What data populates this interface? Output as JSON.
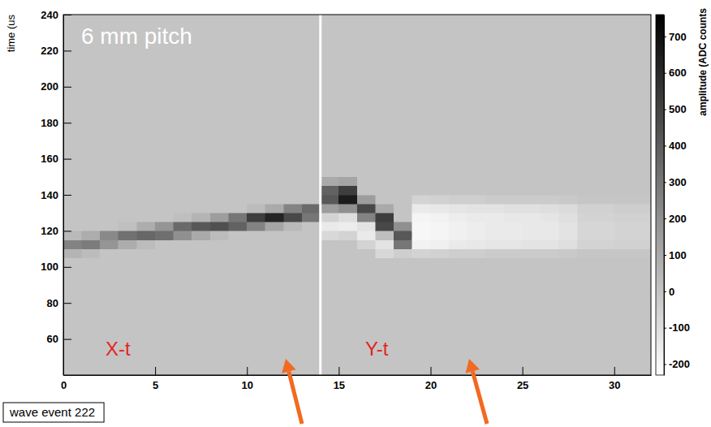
{
  "chart_data": {
    "type": "heatmap",
    "title": "wave event 222",
    "ylabel": "time (us",
    "annotations": [
      "6 mm pitch",
      "X-t",
      "Y-t"
    ],
    "xlim": [
      0,
      32
    ],
    "xticks": [
      0,
      5,
      10,
      15,
      20,
      25,
      30
    ],
    "ylim": [
      40,
      240
    ],
    "yticks": [
      60,
      80,
      100,
      120,
      140,
      160,
      180,
      200,
      220,
      240
    ],
    "divider": 14,
    "x_bins": [
      0,
      1,
      2,
      3,
      4,
      5,
      6,
      7,
      8,
      9,
      10,
      11,
      12,
      13,
      14,
      15,
      16,
      17,
      18,
      19,
      20,
      21,
      22,
      23,
      24,
      25,
      26,
      27,
      28,
      29,
      30,
      31,
      32
    ],
    "y_bins": [
      40,
      105,
      110,
      115,
      120,
      125,
      130,
      135,
      140,
      145,
      150,
      240
    ],
    "cells": [
      [
        0,
        60,
        250,
        40,
        0,
        0,
        0,
        0,
        0,
        0,
        0
      ],
      [
        0,
        30,
        280,
        90,
        0,
        0,
        0,
        0,
        0,
        0,
        0
      ],
      [
        0,
        0,
        180,
        230,
        0,
        0,
        0,
        0,
        0,
        0,
        0
      ],
      [
        0,
        0,
        90,
        320,
        20,
        0,
        0,
        0,
        0,
        0,
        0
      ],
      [
        0,
        0,
        30,
        360,
        90,
        0,
        0,
        0,
        0,
        0,
        0
      ],
      [
        0,
        0,
        0,
        330,
        180,
        0,
        0,
        0,
        0,
        0,
        0
      ],
      [
        0,
        0,
        0,
        200,
        350,
        20,
        0,
        0,
        0,
        0,
        0
      ],
      [
        0,
        0,
        0,
        100,
        420,
        60,
        0,
        0,
        0,
        0,
        0
      ],
      [
        0,
        0,
        0,
        30,
        450,
        150,
        0,
        0,
        0,
        0,
        0
      ],
      [
        0,
        0,
        0,
        0,
        380,
        300,
        0,
        0,
        0,
        0,
        0
      ],
      [
        0,
        0,
        0,
        0,
        250,
        520,
        30,
        0,
        0,
        0,
        0
      ],
      [
        0,
        0,
        0,
        0,
        120,
        620,
        100,
        0,
        0,
        0,
        0
      ],
      [
        0,
        0,
        0,
        0,
        40,
        480,
        250,
        0,
        0,
        0,
        0
      ],
      [
        0,
        0,
        0,
        0,
        0,
        300,
        350,
        0,
        0,
        0,
        0
      ],
      [
        0,
        0,
        0,
        -80,
        -150,
        -60,
        150,
        420,
        380,
        100,
        0
      ],
      [
        0,
        0,
        0,
        -60,
        -160,
        -100,
        200,
        650,
        520,
        120,
        0
      ],
      [
        0,
        0,
        -60,
        -150,
        -120,
        250,
        480,
        150,
        0,
        0,
        0
      ],
      [
        0,
        -80,
        -120,
        20,
        480,
        520,
        100,
        0,
        0,
        0,
        0
      ],
      [
        0,
        -40,
        300,
        420,
        200,
        0,
        0,
        0,
        0,
        0,
        0
      ],
      [
        0,
        -60,
        -180,
        -200,
        -200,
        -190,
        -150,
        -60,
        0,
        0,
        0
      ],
      [
        0,
        -50,
        -170,
        -190,
        -190,
        -180,
        -140,
        -50,
        0,
        0,
        0
      ],
      [
        0,
        -40,
        -150,
        -170,
        -170,
        -160,
        -130,
        -40,
        0,
        0,
        0
      ],
      [
        0,
        -40,
        -140,
        -160,
        -160,
        -150,
        -120,
        -40,
        0,
        0,
        0
      ],
      [
        0,
        -30,
        -130,
        -150,
        -150,
        -150,
        -120,
        -30,
        0,
        0,
        0
      ],
      [
        0,
        -30,
        -130,
        -150,
        -150,
        -140,
        -110,
        -30,
        0,
        0,
        0
      ],
      [
        0,
        -30,
        -120,
        -140,
        -140,
        -140,
        -110,
        -30,
        0,
        0,
        0
      ],
      [
        0,
        -30,
        -120,
        -140,
        -140,
        -130,
        -100,
        -30,
        0,
        0,
        0
      ],
      [
        0,
        -20,
        -100,
        -120,
        -120,
        -110,
        -90,
        -20,
        0,
        0,
        0
      ],
      [
        0,
        -10,
        -60,
        -70,
        -70,
        -60,
        -50,
        -10,
        0,
        0,
        0
      ],
      [
        0,
        -10,
        -60,
        -70,
        -70,
        -60,
        -50,
        -10,
        0,
        0,
        0
      ],
      [
        0,
        -10,
        -50,
        -60,
        -60,
        -50,
        -40,
        -10,
        0,
        0,
        0
      ],
      [
        0,
        -10,
        -50,
        -60,
        -60,
        -50,
        -40,
        -10,
        0,
        0,
        0
      ]
    ],
    "colorbar": {
      "title": "amplitude (ADC counts",
      "range": [
        -230,
        760
      ],
      "ticks": [
        -200,
        -100,
        0,
        100,
        200,
        300,
        400,
        500,
        600,
        700
      ]
    }
  }
}
